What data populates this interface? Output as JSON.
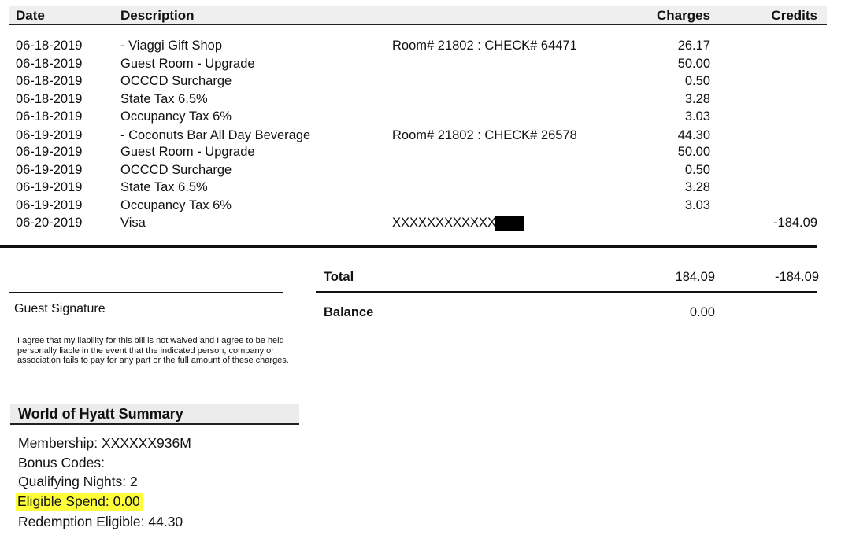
{
  "columns": {
    "date": "Date",
    "description": "Description",
    "charges": "Charges",
    "credits": "Credits"
  },
  "items": [
    {
      "date": "06-18-2019",
      "description": "- Viaggi Gift Shop",
      "reference": "Room# 21802 : CHECK# 64471",
      "charge": "26.17",
      "credit": ""
    },
    {
      "date": "06-18-2019",
      "description": "Guest Room - Upgrade",
      "reference": "",
      "charge": "50.00",
      "credit": ""
    },
    {
      "date": "06-18-2019",
      "description": "OCCCD Surcharge",
      "reference": "",
      "charge": "0.50",
      "credit": ""
    },
    {
      "date": "06-18-2019",
      "description": "State Tax 6.5%",
      "reference": "",
      "charge": "3.28",
      "credit": ""
    },
    {
      "date": "06-18-2019",
      "description": "Occupancy Tax 6%",
      "reference": "",
      "charge": "3.03",
      "credit": ""
    },
    {
      "date": "06-19-2019",
      "description": "- Coconuts Bar All Day Beverage",
      "reference": "Room# 21802 : CHECK# 26578",
      "charge": "44.30",
      "credit": ""
    },
    {
      "date": "06-19-2019",
      "description": "Guest Room - Upgrade",
      "reference": "",
      "charge": "50.00",
      "credit": ""
    },
    {
      "date": "06-19-2019",
      "description": "OCCCD Surcharge",
      "reference": "",
      "charge": "0.50",
      "credit": ""
    },
    {
      "date": "06-19-2019",
      "description": "State Tax 6.5%",
      "reference": "",
      "charge": "3.28",
      "credit": ""
    },
    {
      "date": "06-19-2019",
      "description": "Occupancy Tax 6%",
      "reference": "",
      "charge": "3.03",
      "credit": ""
    },
    {
      "date": "06-20-2019",
      "description": "Visa",
      "reference": "XXXXXXXXXXXX",
      "charge": "",
      "credit": "-184.09"
    }
  ],
  "totals": {
    "total_label": "Total",
    "total_charges": "184.09",
    "total_credits": "-184.09",
    "balance_label": "Balance",
    "balance": "0.00"
  },
  "signature": {
    "label": "Guest Signature",
    "disclaimer": "I agree that my liability for this bill is not waived and I agree to be held personally liable in the event that the indicated person, company or association fails to pay for any part or the full amount of these charges."
  },
  "summary": {
    "title": "World of Hyatt Summary",
    "membership": "Membership: XXXXXX936M",
    "bonus_codes": "Bonus Codes:",
    "qualifying_nights": "Qualifying Nights: 2",
    "eligible_spend": "Eligible Spend: 0.00",
    "redemption_eligible": "Redemption Eligible: 44.30"
  },
  "colors": {
    "highlight": "#ffff3a",
    "header_bg": "#efefef",
    "redaction": "#000000"
  }
}
